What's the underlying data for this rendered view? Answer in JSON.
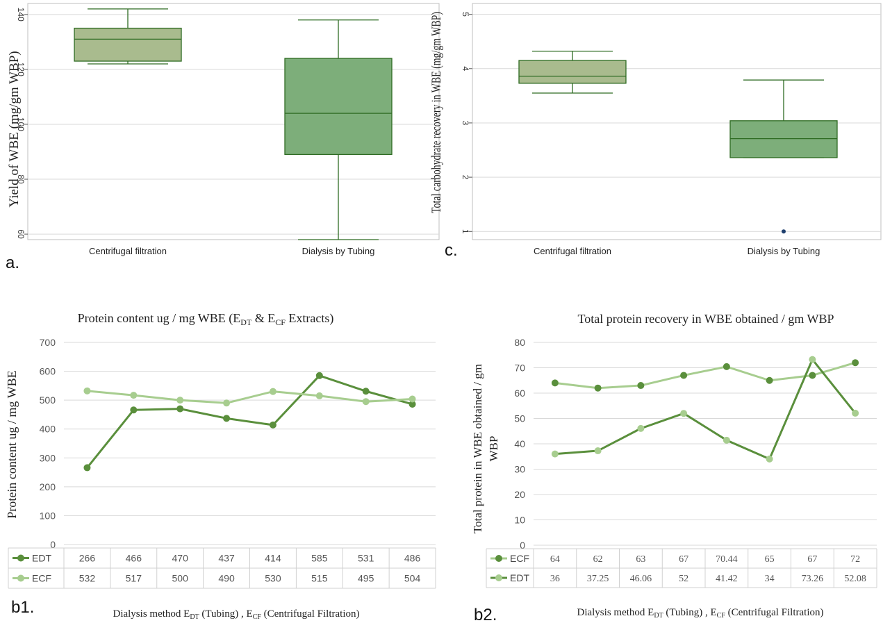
{
  "panels": {
    "a": {
      "label": "a."
    },
    "c": {
      "label": "c."
    },
    "b1": {
      "label": "b1."
    },
    "b2": {
      "label": "b2."
    }
  },
  "colors": {
    "box_light": "#a9bb8e",
    "box_dark": "#7dae7a",
    "box_stroke": "#2e6b22",
    "line_dark": "#5a8f3c",
    "line_light": "#a7cd8f",
    "grid": "#d9d9d9",
    "outlier": "#1f3f6e"
  },
  "chart_data": [
    {
      "id": "a",
      "type": "box",
      "ylabel": "Yield of WBE (mg/gm WBP)",
      "ylim": [
        58,
        144
      ],
      "yticks": [
        60,
        80,
        100,
        120,
        140
      ],
      "ytick_labels": [
        "60",
        "80",
        "100",
        "120",
        "140"
      ],
      "grid": true,
      "categories": [
        "Centrifugal filtration",
        "Dialysis by Tubing"
      ],
      "boxes": [
        {
          "category": "Centrifugal filtration",
          "min": 122,
          "q1": 123,
          "median": 131,
          "q3": 135,
          "max": 142,
          "fill": "light"
        },
        {
          "category": "Dialysis by Tubing",
          "min": 58,
          "q1": 89,
          "median": 104,
          "q3": 124,
          "max": 138,
          "fill": "dark"
        }
      ]
    },
    {
      "id": "c",
      "type": "box",
      "ylabel": "Total carbohydrate recovery in WBE (mg/gm WBP)",
      "ylim": [
        0.85,
        5.2
      ],
      "yticks": [
        1,
        2,
        3,
        4,
        5
      ],
      "ytick_labels": [
        "1",
        "2",
        "3",
        "4",
        "5"
      ],
      "grid": true,
      "categories": [
        "Centrifugal filtration",
        "Dialysis by Tubing"
      ],
      "boxes": [
        {
          "category": "Centrifugal filtration",
          "min": 3.55,
          "q1": 3.73,
          "median": 3.86,
          "q3": 4.15,
          "max": 4.32,
          "fill": "light"
        },
        {
          "category": "Dialysis by Tubing",
          "min": 2.36,
          "q1": 2.36,
          "median": 2.71,
          "q3": 3.04,
          "max": 3.79,
          "fill": "dark",
          "outliers": [
            1.0
          ]
        }
      ]
    },
    {
      "id": "b1",
      "type": "line",
      "title_main": "Protein content ug / mg WBE (E",
      "title_sub1": "DT",
      "title_mid": " & E",
      "title_sub2": "CF",
      "title_end": " Extracts)",
      "ylabel": "Protein content ug / mg WBE",
      "xlabel_main": "Dialysis method E",
      "xlabel_sub1": "DT",
      "xlabel_mid": " (Tubing) , E",
      "xlabel_sub2": "CF",
      "xlabel_end": " (Centrifugal Filtration)",
      "ylim": [
        0,
        700
      ],
      "yticks": [
        0,
        100,
        200,
        300,
        400,
        500,
        600,
        700
      ],
      "grid": true,
      "legend": "data-table",
      "series": [
        {
          "name": "EDT",
          "values": [
            266,
            466,
            470,
            437,
            414,
            585,
            531,
            486
          ],
          "color": "dark"
        },
        {
          "name": "ECF",
          "values": [
            532,
            517,
            500,
            490,
            530,
            515,
            495,
            504
          ],
          "color": "light"
        }
      ],
      "table_rows": [
        {
          "name": "EDT",
          "cells": [
            "266",
            "466",
            "470",
            "437",
            "414",
            "585",
            "531",
            "486"
          ],
          "color": "dark"
        },
        {
          "name": "ECF",
          "cells": [
            "532",
            "517",
            "500",
            "490",
            "530",
            "515",
            "495",
            "504"
          ],
          "color": "light"
        }
      ]
    },
    {
      "id": "b2",
      "type": "line",
      "title": "Total protein recovery in WBE obtained / gm WBP",
      "ylabel_line1": "Total protein in WBE obtained / gm",
      "ylabel_line2": "WBP",
      "xlabel_main": "Dialysis method E",
      "xlabel_sub1": "DT",
      "xlabel_mid": " (Tubing) , E",
      "xlabel_sub2": "CF",
      "xlabel_end": " (Centrifugal Filtration)",
      "ylim": [
        0,
        80
      ],
      "yticks": [
        0,
        10,
        20,
        30,
        40,
        50,
        60,
        70,
        80
      ],
      "grid": true,
      "legend": "data-table",
      "series": [
        {
          "name": "ECF",
          "values": [
            64,
            62,
            63,
            67,
            70.44,
            65,
            67,
            72
          ],
          "marker": "dark",
          "line": "light"
        },
        {
          "name": "EDT",
          "values": [
            36,
            37.25,
            46.06,
            52,
            41.42,
            34,
            73.26,
            52.08
          ],
          "marker": "light",
          "line": "dark"
        }
      ],
      "table_rows": [
        {
          "name": "ECF",
          "cells": [
            "64",
            "62",
            "63",
            "67",
            "70.44",
            "65",
            "67",
            "72"
          ],
          "marker": "dark",
          "line": "light"
        },
        {
          "name": "EDT",
          "cells": [
            "36",
            "37.25",
            "46.06",
            "52",
            "41.42",
            "34",
            "73.26",
            "52.08"
          ],
          "marker": "light",
          "line": "dark"
        }
      ]
    }
  ]
}
